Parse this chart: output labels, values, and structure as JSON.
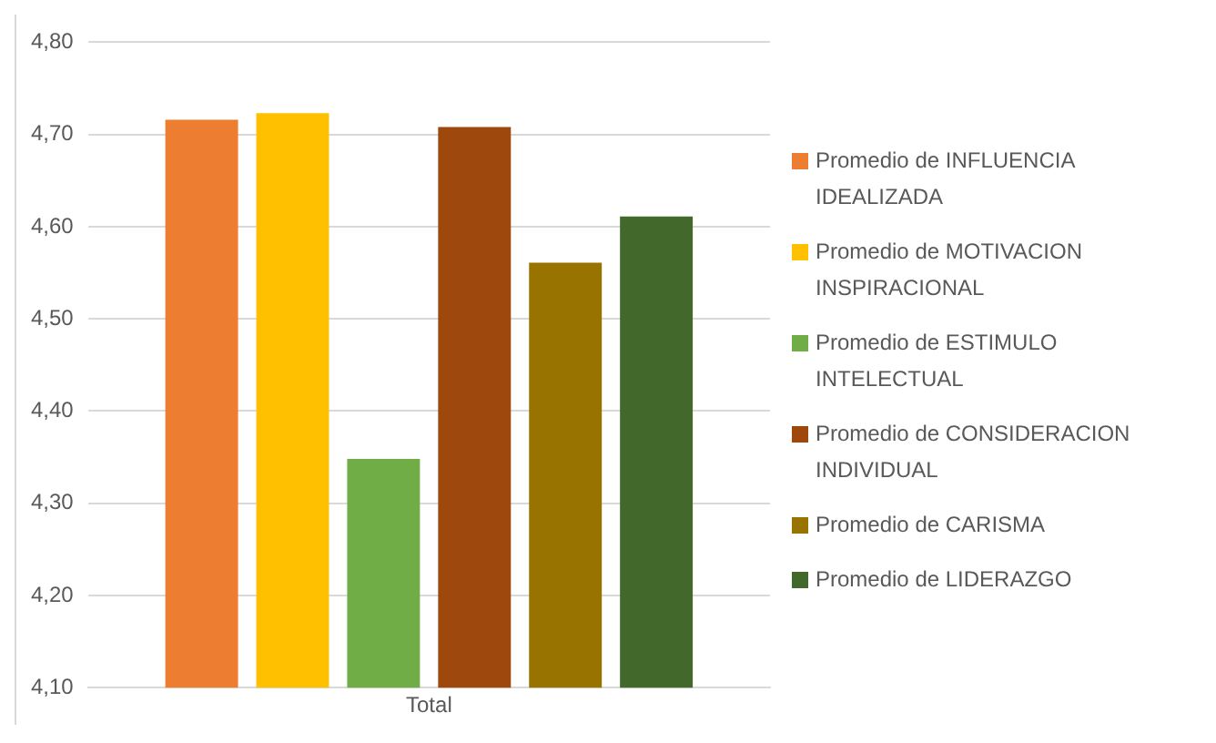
{
  "chart_data": {
    "type": "bar",
    "categories": [
      "Total"
    ],
    "series": [
      {
        "name": "Promedio de INFLUENCIA IDEALIZADA",
        "color": "#ed7d31",
        "values": [
          4.716
        ]
      },
      {
        "name": "Promedio de MOTIVACION INSPIRACIONAL",
        "color": "#ffc000",
        "values": [
          4.723
        ]
      },
      {
        "name": "Promedio de ESTIMULO INTELECTUAL",
        "color": "#70ad47",
        "values": [
          4.348
        ]
      },
      {
        "name": "Promedio de CONSIDERACION INDIVIDUAL",
        "color": "#9e480e",
        "values": [
          4.708
        ]
      },
      {
        "name": "Promedio de CARISMA",
        "color": "#997300",
        "values": [
          4.561
        ]
      },
      {
        "name": "Promedio de LIDERAZGO",
        "color": "#43682b",
        "values": [
          4.611
        ]
      }
    ],
    "ylim": [
      4.1,
      4.8
    ],
    "yticks": [
      {
        "value": 4.1,
        "label": "4,10"
      },
      {
        "value": 4.2,
        "label": "4,20"
      },
      {
        "value": 4.3,
        "label": "4,30"
      },
      {
        "value": 4.4,
        "label": "4,40"
      },
      {
        "value": 4.5,
        "label": "4,50"
      },
      {
        "value": 4.6,
        "label": "4,60"
      },
      {
        "value": 4.7,
        "label": "4,70"
      },
      {
        "value": 4.8,
        "label": "4,80"
      }
    ],
    "grid": "y",
    "legend": "right"
  }
}
